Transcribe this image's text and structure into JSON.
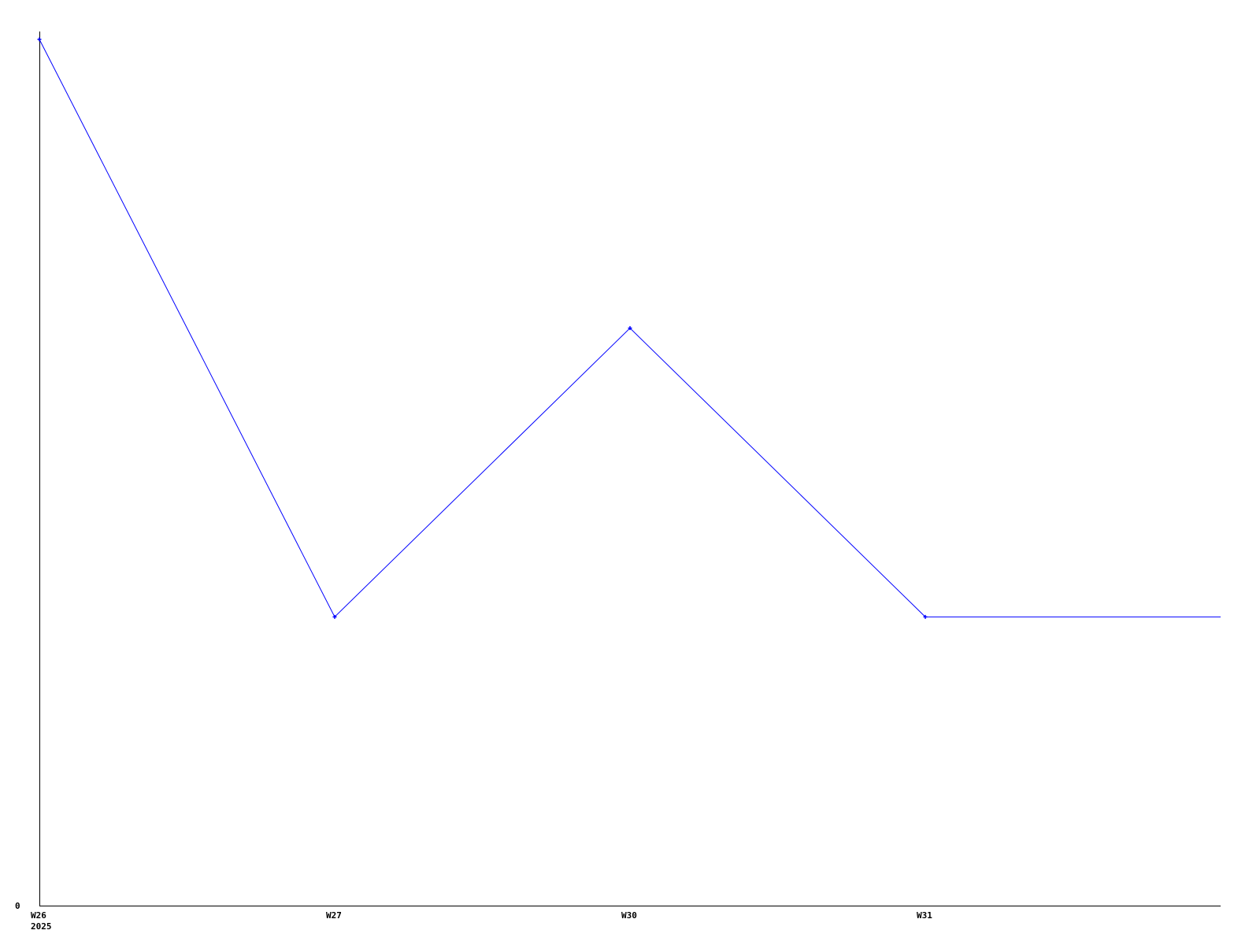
{
  "chart_data": {
    "type": "line",
    "title": "",
    "xlabel": "",
    "ylabel": "",
    "categories": [
      "W26",
      "W27",
      "W30",
      "W31"
    ],
    "x_tick_sublabels": [
      "2025",
      "",
      "",
      ""
    ],
    "series": [
      {
        "values": [
          3,
          1,
          2,
          1
        ],
        "color": "#0000ff"
      }
    ],
    "y_ticks": [
      "0"
    ],
    "ylim": [
      0,
      3
    ],
    "grid": false,
    "legend": "none",
    "line_extends_to_right_edge": true
  }
}
